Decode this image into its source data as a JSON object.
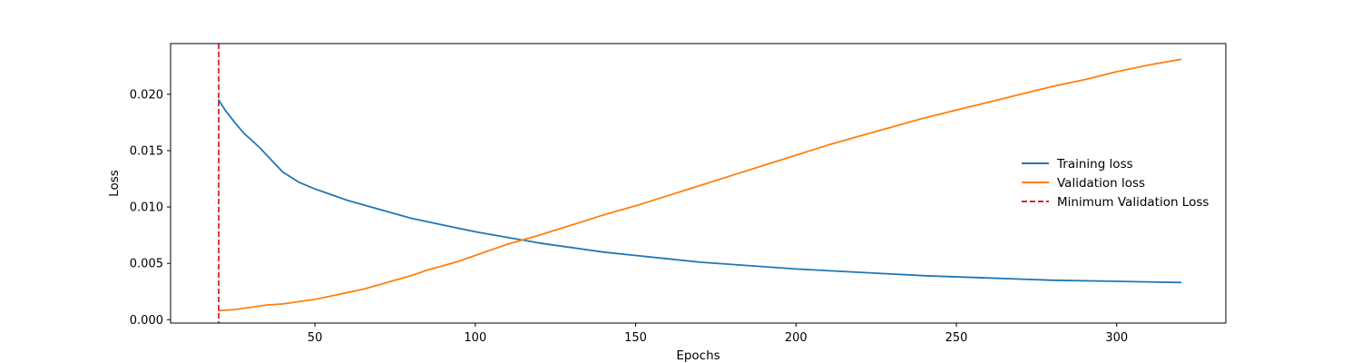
{
  "chart_data": {
    "type": "line",
    "title": "",
    "xlabel": "Epochs",
    "ylabel": "Loss",
    "xlim": [
      5,
      334
    ],
    "ylim": [
      -0.0003,
      0.0245
    ],
    "xticks": [
      50,
      100,
      150,
      200,
      250,
      300
    ],
    "xtick_labels": [
      "50",
      "100",
      "150",
      "200",
      "250",
      "300"
    ],
    "yticks": [
      0.0,
      0.005,
      0.01,
      0.015,
      0.02
    ],
    "ytick_labels": [
      "0.000",
      "0.005",
      "0.010",
      "0.015",
      "0.020"
    ],
    "grid": false,
    "legend_position": "right",
    "series": [
      {
        "name": "Training loss",
        "color": "#1f77b4",
        "style": "solid",
        "x": [
          20,
          22,
          25,
          28,
          30,
          33,
          35,
          40,
          45,
          50,
          55,
          60,
          70,
          80,
          90,
          100,
          110,
          120,
          130,
          140,
          150,
          160,
          170,
          180,
          190,
          200,
          220,
          240,
          260,
          280,
          300,
          320
        ],
        "y": [
          0.0195,
          0.0186,
          0.0175,
          0.0165,
          0.016,
          0.0152,
          0.0146,
          0.0131,
          0.0122,
          0.0116,
          0.0111,
          0.0106,
          0.0098,
          0.009,
          0.0084,
          0.0078,
          0.0073,
          0.0068,
          0.0064,
          0.006,
          0.0057,
          0.0054,
          0.0051,
          0.0049,
          0.0047,
          0.0045,
          0.0042,
          0.0039,
          0.0037,
          0.0035,
          0.0034,
          0.0033
        ]
      },
      {
        "name": "Validation loss",
        "color": "#ff7f0e",
        "style": "solid",
        "x": [
          20,
          25,
          30,
          35,
          40,
          45,
          50,
          55,
          60,
          65,
          70,
          75,
          80,
          85,
          90,
          95,
          100,
          105,
          110,
          115,
          120,
          130,
          140,
          150,
          160,
          170,
          180,
          190,
          200,
          210,
          220,
          230,
          240,
          250,
          260,
          270,
          280,
          290,
          300,
          310,
          320
        ],
        "y": [
          0.0008,
          0.0009,
          0.0011,
          0.0013,
          0.0014,
          0.0016,
          0.0018,
          0.0021,
          0.0024,
          0.0027,
          0.0031,
          0.0035,
          0.0039,
          0.0044,
          0.0048,
          0.0052,
          0.0057,
          0.0062,
          0.0067,
          0.0071,
          0.0075,
          0.0084,
          0.0093,
          0.0101,
          0.011,
          0.0119,
          0.0128,
          0.0137,
          0.0146,
          0.0155,
          0.0163,
          0.0171,
          0.0179,
          0.0186,
          0.0193,
          0.02,
          0.0207,
          0.0213,
          0.022,
          0.0226,
          0.0231
        ]
      }
    ],
    "vlines": [
      {
        "name": "Minimum Validation Loss",
        "x": 20,
        "color": "#d62728",
        "style": "dashed"
      }
    ]
  }
}
